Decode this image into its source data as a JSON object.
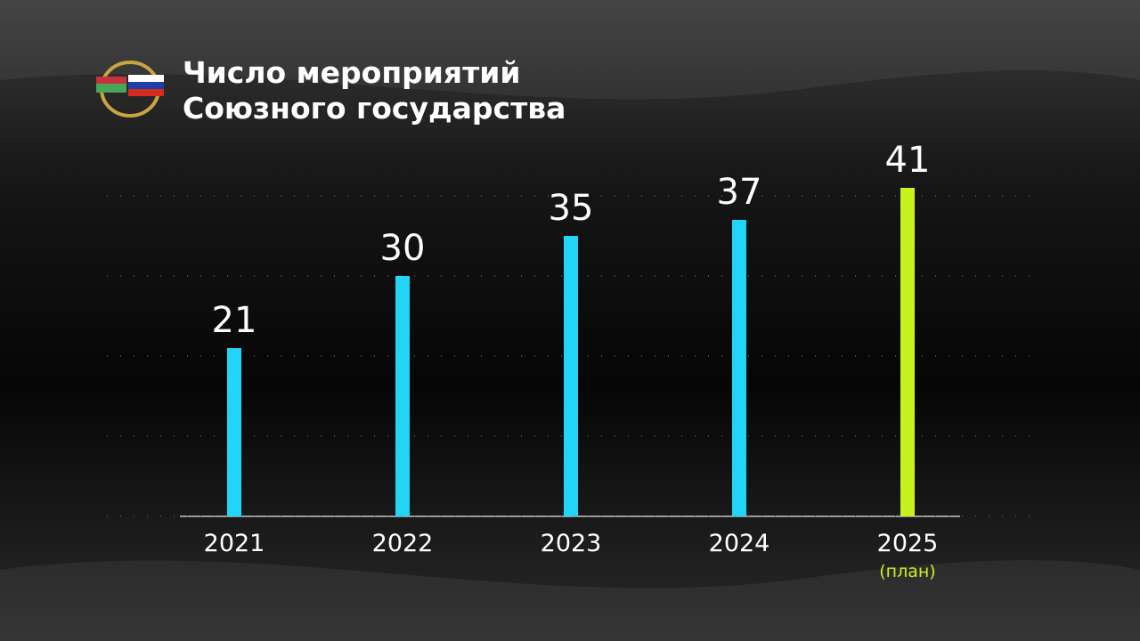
{
  "chart_data": {
    "type": "bar",
    "title": [
      "Число мероприятий",
      "Союзного государства"
    ],
    "categories": [
      "2021",
      "2022",
      "2023",
      "2024",
      "2025"
    ],
    "values": [
      21,
      30,
      35,
      37,
      41
    ],
    "colors": [
      "#22d4f5",
      "#22d4f5",
      "#22d4f5",
      "#22d4f5",
      "#c8f21c"
    ],
    "annotation": "(план)",
    "ylim": [
      0,
      45
    ],
    "yticks": [
      0,
      10,
      20,
      30,
      40
    ],
    "grid": true
  }
}
